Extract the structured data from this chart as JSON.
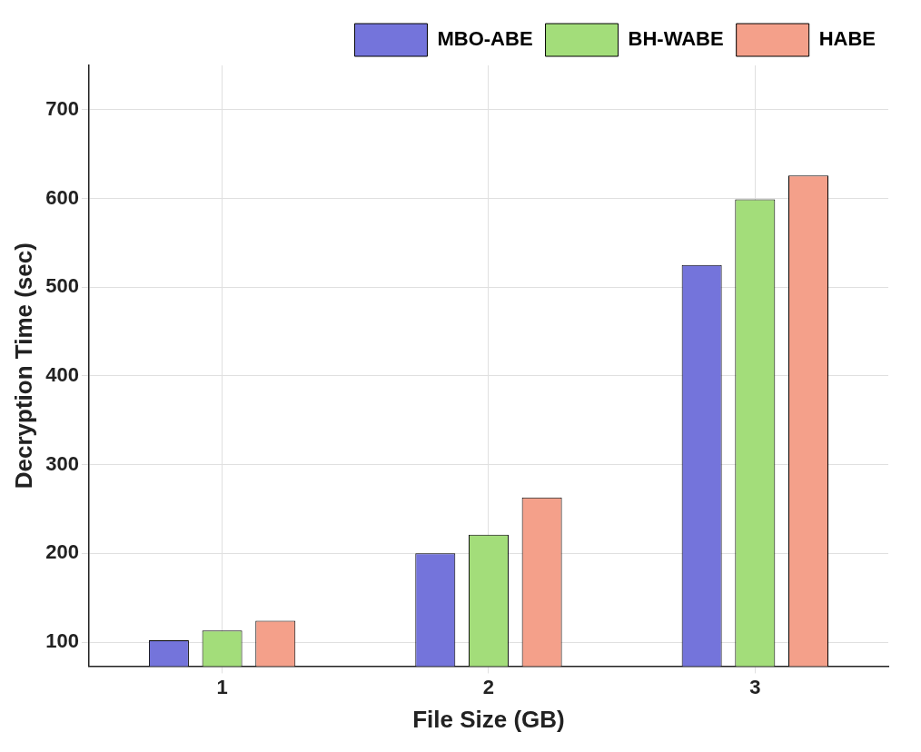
{
  "chart_data": {
    "type": "bar",
    "xlabel": "File Size (GB)",
    "ylabel": "Decryption Time (sec)",
    "categories": [
      "1",
      "2",
      "3"
    ],
    "series": [
      {
        "name": "MBO-ABE",
        "color": "#7474db",
        "values": [
          102,
          200,
          525
        ]
      },
      {
        "name": "BH-WABE",
        "color": "#a3dd7a",
        "values": [
          113,
          221,
          599
        ]
      },
      {
        "name": "HABE",
        "color": "#f4a08a",
        "values": [
          124,
          263,
          626
        ]
      }
    ],
    "ylim": [
      73,
      750
    ],
    "yticks": [
      100,
      200,
      300,
      400,
      500,
      600,
      700
    ],
    "grid": true,
    "legend": "top right"
  }
}
